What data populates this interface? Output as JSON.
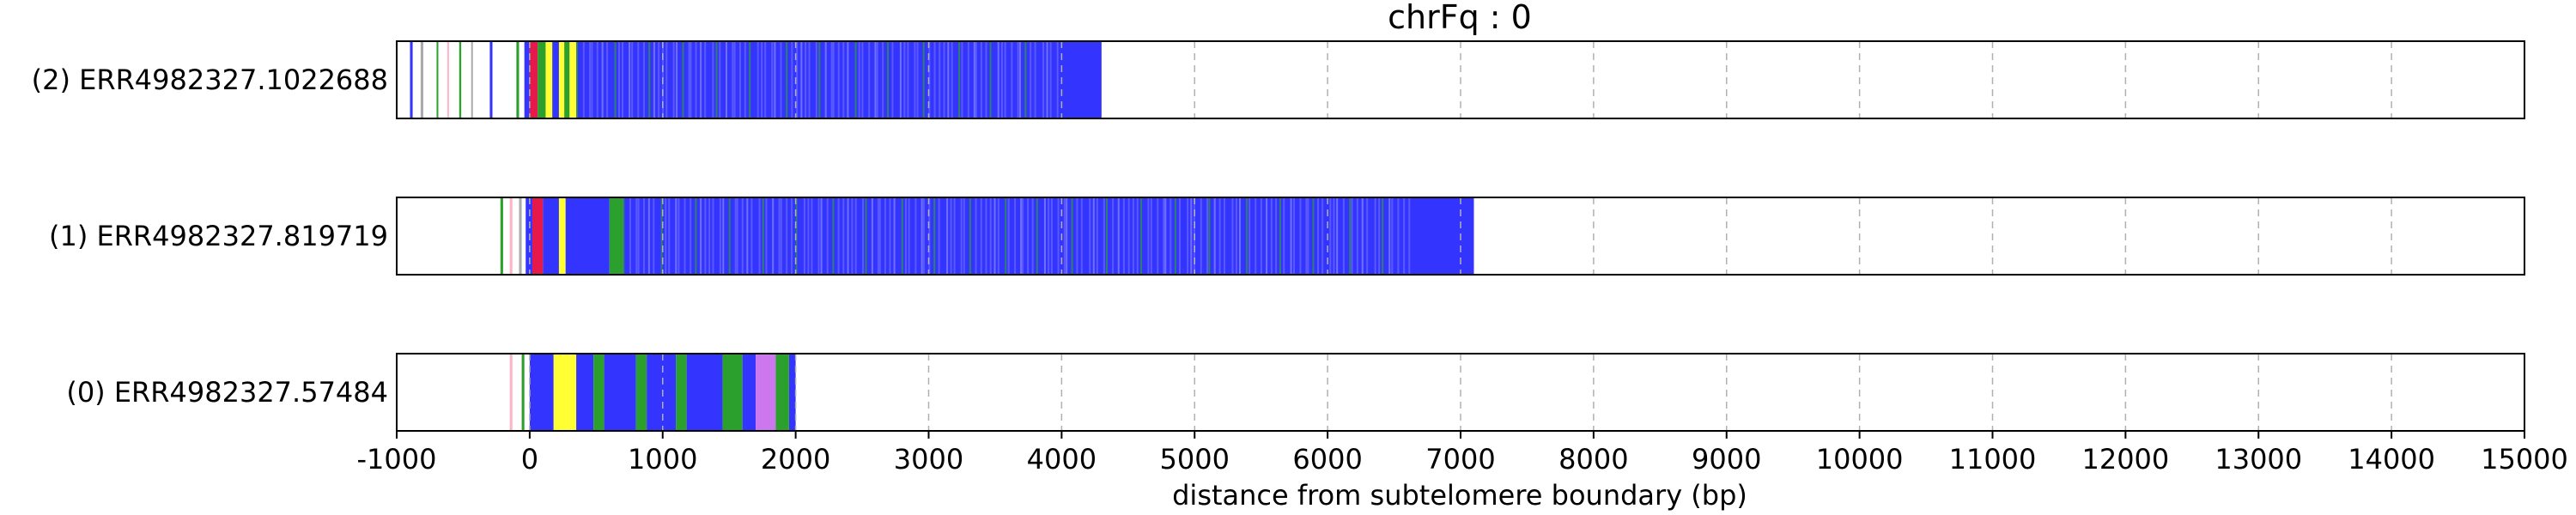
{
  "chart_data": {
    "type": "bar",
    "title": "chrFq : 0",
    "xlabel": "distance from subtelomere boundary (bp)",
    "xlim": [
      -1000,
      15000
    ],
    "xticks": [
      -1000,
      0,
      1000,
      2000,
      3000,
      4000,
      5000,
      6000,
      7000,
      8000,
      9000,
      10000,
      11000,
      12000,
      13000,
      14000,
      15000
    ],
    "grid": "vertical dashed",
    "colors": {
      "telomere": "#3434ff",
      "green": "#2ca02c",
      "yellow": "#ffff33",
      "red": "#e6194b",
      "pink": "#ffb3c6",
      "violet": "#cc77ee",
      "grey": "#aaaaaa"
    },
    "rows": [
      {
        "label": "(2) ERR4982327.1022688",
        "read_start": -1000,
        "read_end": 15000,
        "telomere_start": 350,
        "telomere_end": 4300,
        "features": [
          {
            "start": -900,
            "end": -880,
            "color": "blue"
          },
          {
            "start": -820,
            "end": -800,
            "color": "grey"
          },
          {
            "start": -700,
            "end": -690,
            "color": "green"
          },
          {
            "start": -620,
            "end": -610,
            "color": "pink"
          },
          {
            "start": -530,
            "end": -515,
            "color": "green"
          },
          {
            "start": -440,
            "end": -430,
            "color": "grey"
          },
          {
            "start": -300,
            "end": -280,
            "color": "blue"
          },
          {
            "start": -100,
            "end": -80,
            "color": "green"
          },
          {
            "start": -40,
            "end": 0,
            "color": "blue"
          },
          {
            "start": 0,
            "end": 60,
            "color": "red"
          },
          {
            "start": 60,
            "end": 120,
            "color": "green"
          },
          {
            "start": 120,
            "end": 170,
            "color": "yellow"
          },
          {
            "start": 170,
            "end": 220,
            "color": "blue"
          },
          {
            "start": 220,
            "end": 260,
            "color": "yellow"
          },
          {
            "start": 260,
            "end": 300,
            "color": "green"
          },
          {
            "start": 300,
            "end": 350,
            "color": "yellow"
          }
        ]
      },
      {
        "label": "(1) ERR4982327.819719",
        "read_start": -1000,
        "read_end": 15000,
        "telomere_start": 700,
        "telomere_end": 7100,
        "features": [
          {
            "start": -220,
            "end": -200,
            "color": "green"
          },
          {
            "start": -150,
            "end": -130,
            "color": "pink"
          },
          {
            "start": -80,
            "end": -60,
            "color": "grey"
          },
          {
            "start": -30,
            "end": 20,
            "color": "blue"
          },
          {
            "start": 20,
            "end": 100,
            "color": "red"
          },
          {
            "start": 100,
            "end": 220,
            "color": "blue"
          },
          {
            "start": 220,
            "end": 270,
            "color": "yellow"
          },
          {
            "start": 270,
            "end": 600,
            "color": "blue"
          },
          {
            "start": 600,
            "end": 700,
            "color": "green"
          }
        ]
      },
      {
        "label": "(0) ERR4982327.57484",
        "read_start": -1000,
        "read_end": 15000,
        "telomere_start": 1950,
        "telomere_end": 2000,
        "features": [
          {
            "start": -150,
            "end": -130,
            "color": "pink"
          },
          {
            "start": -60,
            "end": -40,
            "color": "green"
          },
          {
            "start": 0,
            "end": 180,
            "color": "blue"
          },
          {
            "start": 180,
            "end": 350,
            "color": "yellow"
          },
          {
            "start": 350,
            "end": 480,
            "color": "blue"
          },
          {
            "start": 480,
            "end": 560,
            "color": "green"
          },
          {
            "start": 560,
            "end": 800,
            "color": "blue"
          },
          {
            "start": 800,
            "end": 880,
            "color": "green"
          },
          {
            "start": 880,
            "end": 1100,
            "color": "blue"
          },
          {
            "start": 1100,
            "end": 1180,
            "color": "green"
          },
          {
            "start": 1180,
            "end": 1450,
            "color": "blue"
          },
          {
            "start": 1450,
            "end": 1600,
            "color": "green"
          },
          {
            "start": 1600,
            "end": 1700,
            "color": "blue"
          },
          {
            "start": 1700,
            "end": 1850,
            "color": "violet"
          },
          {
            "start": 1850,
            "end": 1950,
            "color": "green"
          }
        ]
      }
    ]
  }
}
